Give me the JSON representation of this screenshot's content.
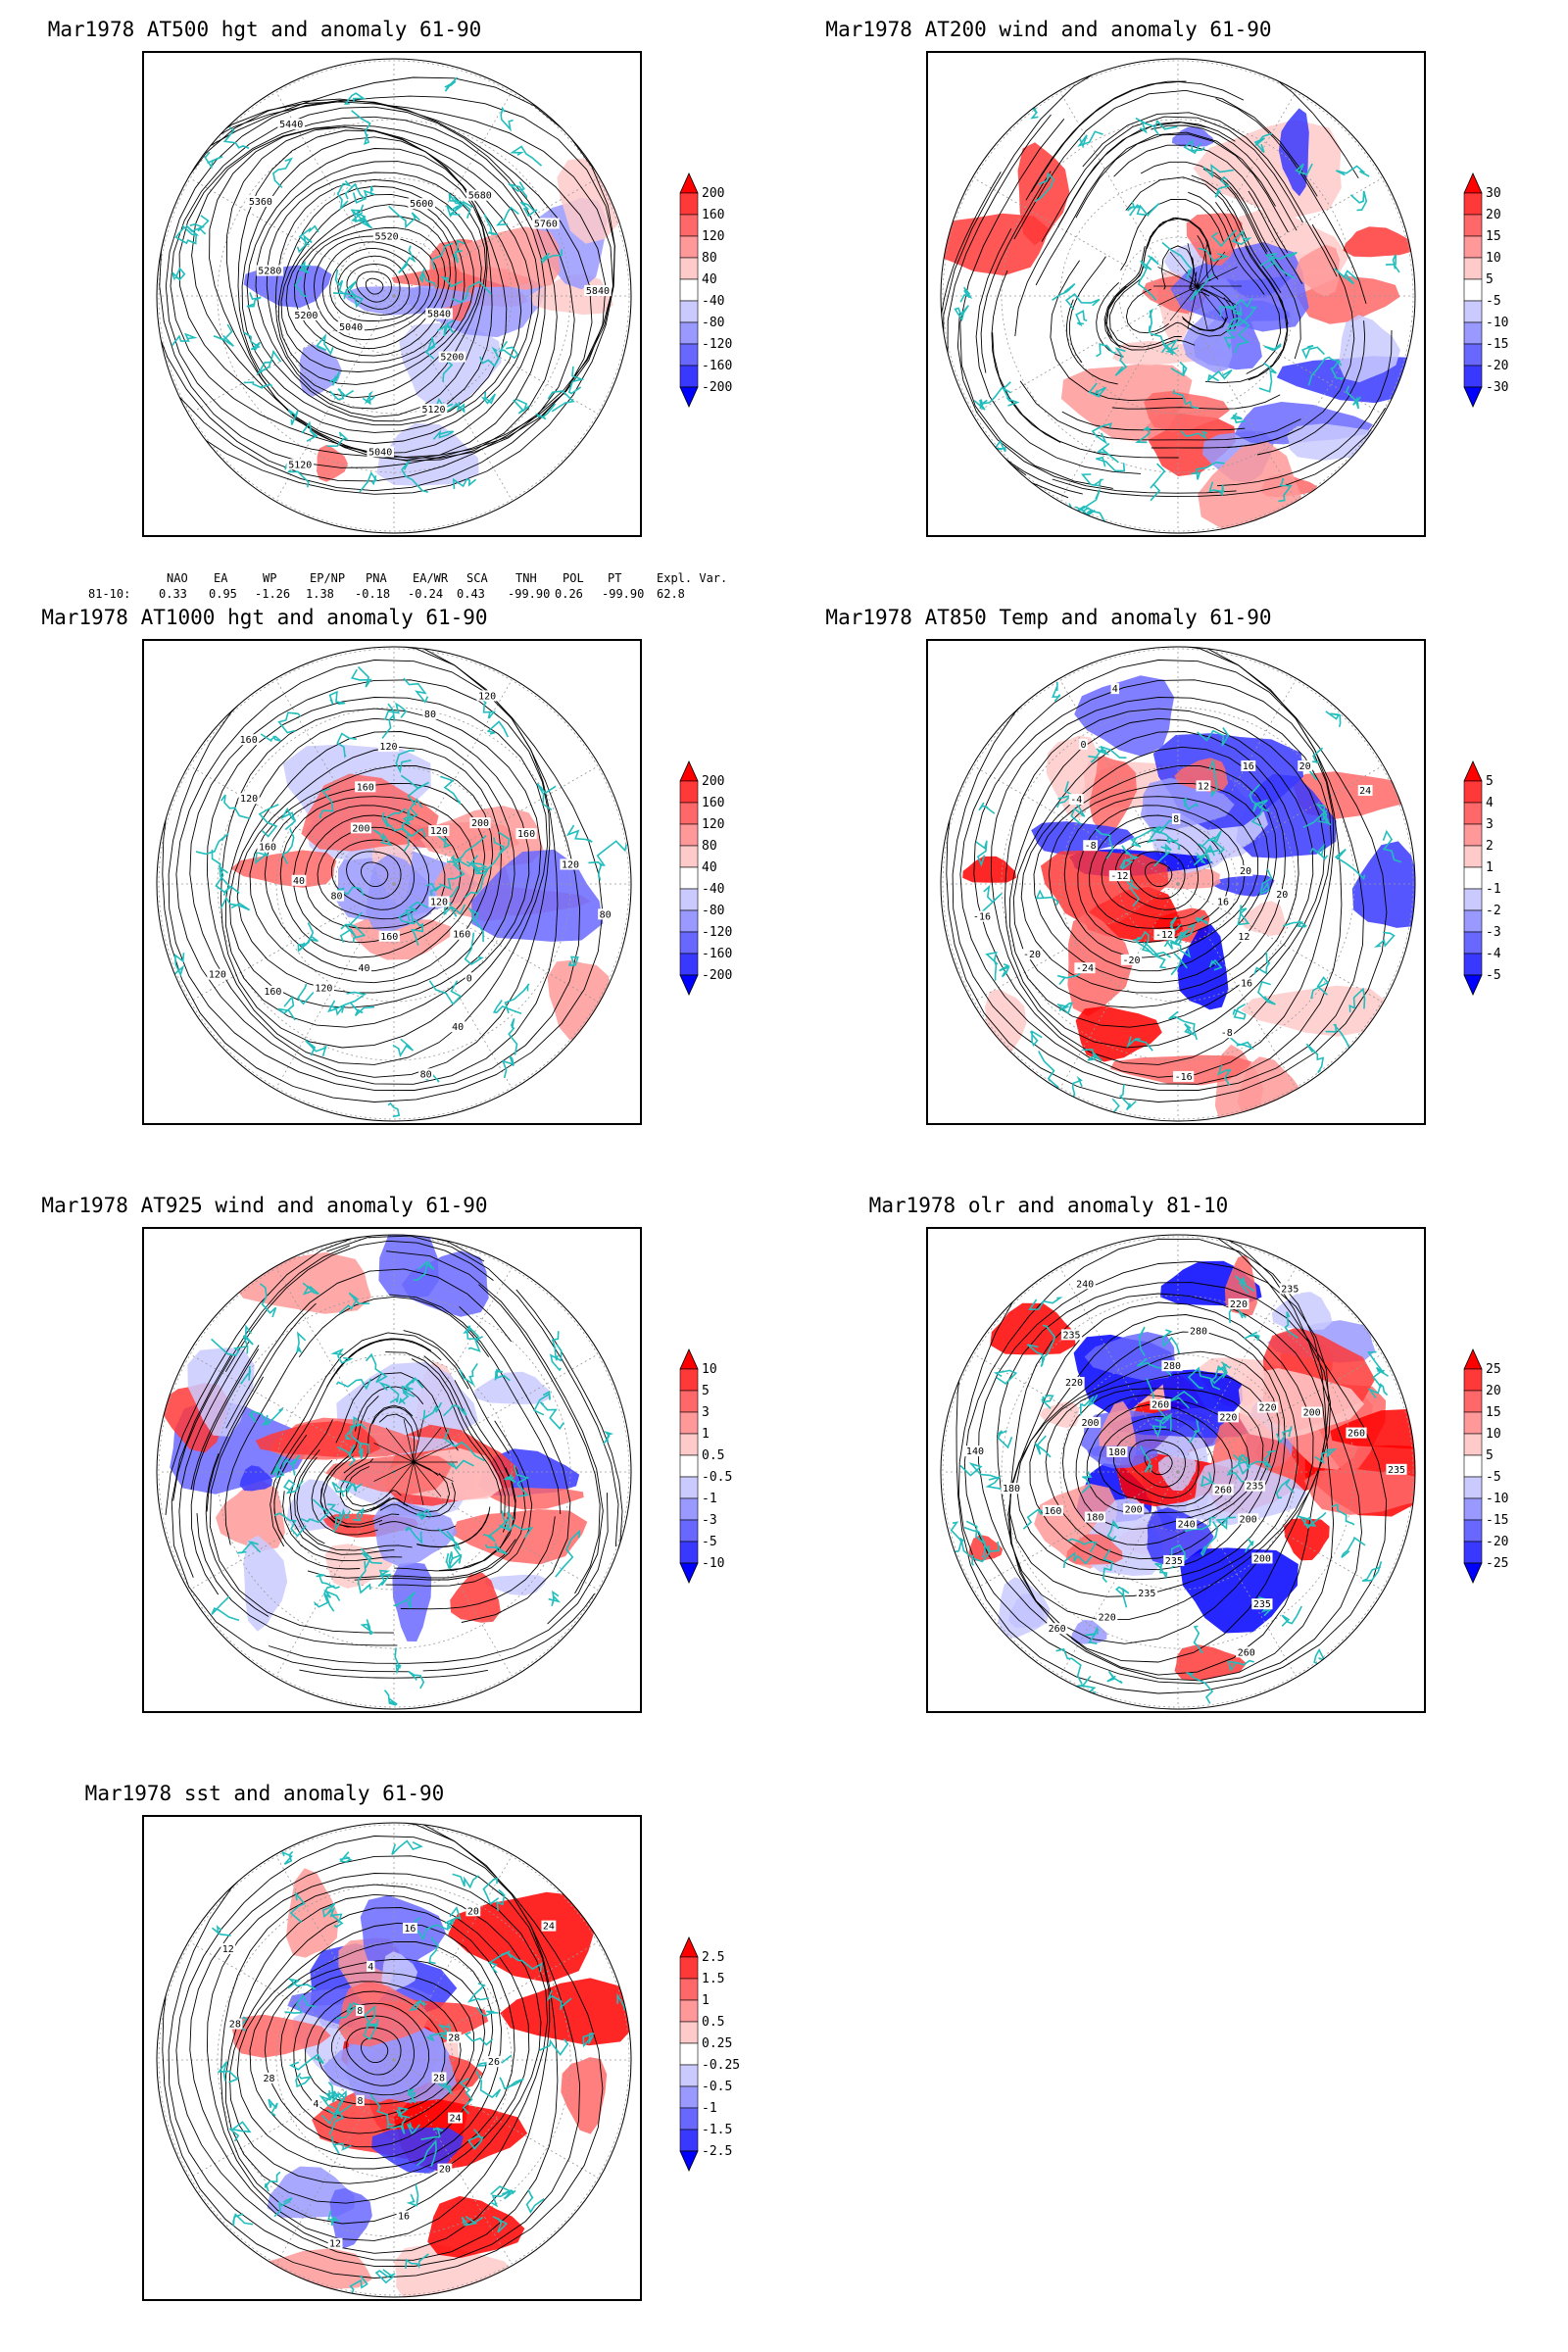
{
  "panels": [
    {
      "id": "p1",
      "title": "Mar1978 AT500 hgt and anomaly 61-90",
      "type": "height",
      "colorbar": [
        "200",
        "160",
        "120",
        "80",
        "40",
        "-40",
        "-80",
        "-120",
        "-160",
        "-200"
      ],
      "contour_labels": [
        "5840",
        "5200",
        "5120",
        "5040",
        "5120",
        "5040",
        "5200",
        "5280",
        "5360",
        "5440",
        "5520",
        "5600",
        "5680",
        "5760",
        "5840"
      ]
    },
    {
      "id": "p2",
      "title": "Mar1978 AT200 wind and anomaly 61-90",
      "type": "wind",
      "colorbar": [
        "30",
        "20",
        "15",
        "10",
        "5",
        "-5",
        "-10",
        "-15",
        "-20",
        "-30"
      ],
      "contour_labels": []
    },
    {
      "id": "p3",
      "title": "Mar1978 AT1000 hgt and anomaly 61-90",
      "type": "height",
      "colorbar": [
        "200",
        "160",
        "120",
        "80",
        "40",
        "-40",
        "-80",
        "-120",
        "-160",
        "-200"
      ],
      "contour_labels": [
        "120",
        "160",
        "0",
        "40",
        "80",
        "160",
        "40",
        "120",
        "160",
        "120",
        "80",
        "40",
        "160",
        "120",
        "160",
        "200",
        "160",
        "120",
        "80",
        "120",
        "120",
        "200",
        "160",
        "120",
        "80"
      ]
    },
    {
      "id": "p4",
      "title": "Mar1978 AT850 Temp and anomaly 61-90",
      "type": "temp",
      "colorbar": [
        "5",
        "4",
        "3",
        "2",
        "1",
        "-1",
        "-2",
        "-3",
        "-4",
        "-5"
      ],
      "contour_labels": [
        "16",
        "12",
        "16",
        "-8",
        "-16",
        "-12",
        "-20",
        "-24",
        "-20",
        "-16",
        "-12",
        "-8",
        "-4",
        "0",
        "4",
        "8",
        "12",
        "16",
        "20",
        "24",
        "20",
        "20"
      ]
    },
    {
      "id": "p5",
      "title": "Mar1978 AT925 wind and anomaly 61-90",
      "type": "wind",
      "colorbar": [
        "10",
        "5",
        "3",
        "1",
        "0.5",
        "-0.5",
        "-1",
        "-3",
        "-5",
        "-10"
      ],
      "contour_labels": []
    },
    {
      "id": "p6",
      "title": "Mar1978 olr and anomaly 81-10",
      "type": "olr",
      "colorbar": [
        "25",
        "20",
        "15",
        "10",
        "5",
        "-5",
        "-10",
        "-15",
        "-20",
        "-25"
      ],
      "contour_labels": [
        "260",
        "200",
        "200",
        "235",
        "260",
        "240",
        "235",
        "235",
        "220",
        "260",
        "200",
        "180",
        "160",
        "180",
        "140",
        "180",
        "200",
        "220",
        "235",
        "240",
        "260",
        "280",
        "280",
        "220",
        "235",
        "220",
        "220",
        "200",
        "260",
        "235",
        "235"
      ]
    },
    {
      "id": "p7",
      "title": "Mar1978 sst and anomaly 61-90",
      "type": "sst",
      "colorbar": [
        "2.5",
        "1.5",
        "1",
        "0.5",
        "0.25",
        "-0.25",
        "-0.5",
        "-1",
        "-1.5",
        "-2.5"
      ],
      "contour_labels": [
        "28",
        "24",
        "20",
        "16",
        "12",
        "8",
        "4",
        "28",
        "28",
        "12",
        "8",
        "4",
        "16",
        "20",
        "24",
        "28",
        "26"
      ]
    }
  ],
  "indices": {
    "headers": [
      "NAO",
      "EA",
      "WP",
      "EP/NP",
      "PNA",
      "EA/WR",
      "SCA",
      "TNH",
      "POL",
      "PT",
      "Expl. Var."
    ],
    "row_label": "81-10:",
    "values": [
      "0.33",
      "0.95",
      "-1.26",
      "1.38",
      "-0.18",
      "-0.24",
      "0.43",
      "-99.90",
      "0.26",
      "-99.90",
      "62.8"
    ]
  },
  "colors": {
    "land_outline": "#22bdbd",
    "contour": "#000000",
    "positive_scale": [
      "#ff0000",
      "#ff3838",
      "#ff6868",
      "#ff9999",
      "#ffcaca"
    ],
    "negative_scale": [
      "#cacaff",
      "#9999ff",
      "#6868ff",
      "#3838ff",
      "#0000ff"
    ]
  }
}
